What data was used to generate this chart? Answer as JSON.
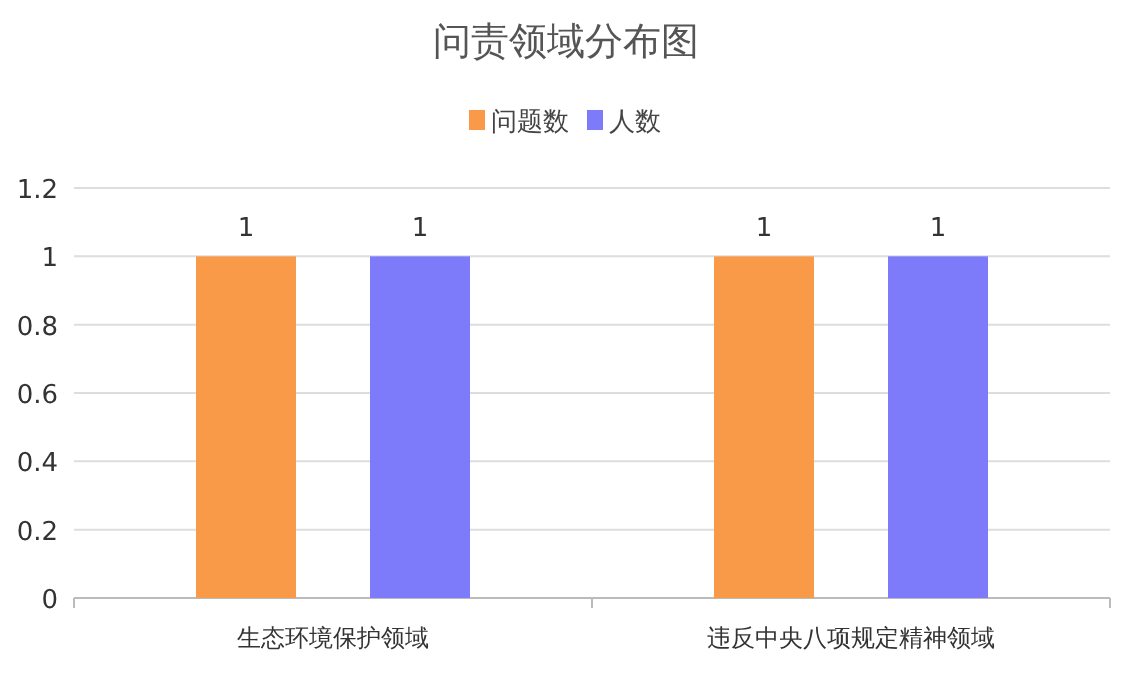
{
  "chart_data": {
    "type": "bar",
    "title": "问责领域分布图",
    "categories": [
      "生态环境保护领域",
      "违反中央八项规定精神领域"
    ],
    "series": [
      {
        "name": "问题数",
        "color": "#f99a48",
        "values": [
          1,
          1
        ]
      },
      {
        "name": "人数",
        "color": "#7d7bfa",
        "values": [
          1,
          1
        ]
      }
    ],
    "ylim": [
      0,
      1.2
    ],
    "yticks": [
      0,
      0.2,
      0.4,
      0.6,
      0.8,
      1,
      1.2
    ],
    "grid": "y",
    "legend": "top",
    "data_labels": true
  }
}
